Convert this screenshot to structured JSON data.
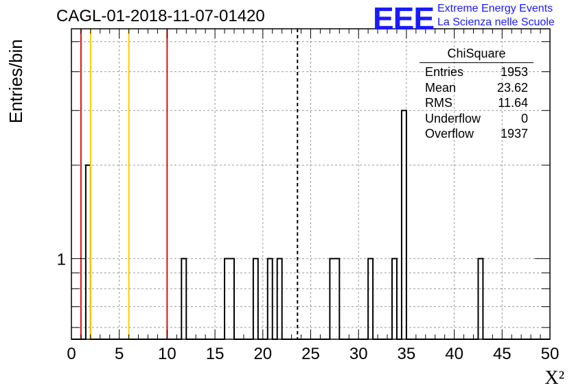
{
  "header": {
    "run_title": "CAGL-01-2018-11-07-01420",
    "logo": "EEE",
    "logo_line1": "Extreme Energy Events",
    "logo_line2": "La Scienza nelle Scuole"
  },
  "stats_box": {
    "title": "ChiSquare",
    "rows": [
      {
        "label": "Entries",
        "value": "1953"
      },
      {
        "label": "Mean",
        "value": "23.62"
      },
      {
        "label": "RMS",
        "value": "11.64"
      },
      {
        "label": "Underflow",
        "value": "0"
      },
      {
        "label": "Overflow",
        "value": "1937"
      }
    ]
  },
  "chart_data": {
    "type": "bar",
    "title": "",
    "xlabel": "X²",
    "ylabel": "Entries/bin",
    "xlim": [
      0,
      50
    ],
    "ylog": true,
    "ylim": [
      0.55,
      5.5
    ],
    "bin_width": 0.5,
    "x_ticks": [
      "0",
      "5",
      "10",
      "15",
      "20",
      "25",
      "30",
      "35",
      "40",
      "45",
      "50"
    ],
    "y_tick_labels": [
      {
        "value": 1,
        "label": "1"
      }
    ],
    "grid": true,
    "bins": [
      {
        "x": 1.5,
        "value": 2
      },
      {
        "x": 11.5,
        "value": 1
      },
      {
        "x": 16.0,
        "value": 1
      },
      {
        "x": 16.5,
        "value": 1
      },
      {
        "x": 19.0,
        "value": 1
      },
      {
        "x": 20.5,
        "value": 1
      },
      {
        "x": 21.5,
        "value": 1
      },
      {
        "x": 27.0,
        "value": 1
      },
      {
        "x": 27.5,
        "value": 1
      },
      {
        "x": 31.0,
        "value": 1
      },
      {
        "x": 33.5,
        "value": 1
      },
      {
        "x": 34.5,
        "value": 3
      },
      {
        "x": 42.5,
        "value": 1
      }
    ],
    "vertical_lines": [
      {
        "x": 1,
        "color": "#dd1111",
        "style": "solid"
      },
      {
        "x": 2,
        "color": "#ffcc00",
        "style": "solid"
      },
      {
        "x": 6,
        "color": "#ffcc00",
        "style": "solid"
      },
      {
        "x": 10,
        "color": "#dd1111",
        "style": "solid"
      },
      {
        "x": 23.62,
        "color": "#000000",
        "style": "dashed"
      }
    ]
  }
}
